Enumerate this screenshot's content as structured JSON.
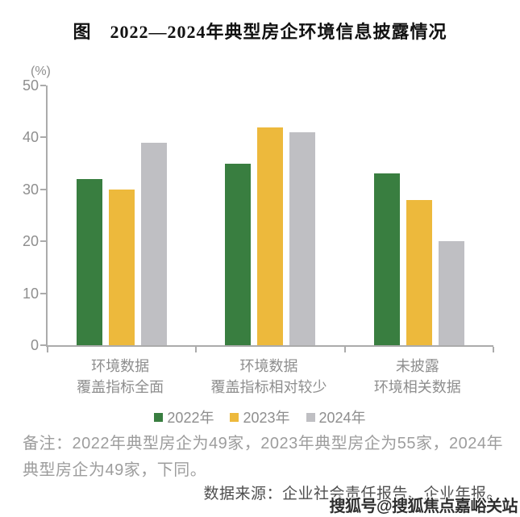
{
  "page": {
    "title": "图　2022—2024年典型房企环境信息披露情况",
    "note": "备注：2022年典型房企为49家，2023年典型房企为55家，2024年典型房企为49家，下同。",
    "source": "数据来源：企业社会责任报告、企业年报。",
    "watermark": "搜狐号@搜狐焦点嘉峪关站"
  },
  "chart_data": {
    "type": "bar",
    "title": "图　2022—2024年典型房企环境信息披露情况",
    "unit_label": "(%)",
    "categories": [
      "环境数据\n覆盖指标全面",
      "环境数据\n覆盖指标相对较少",
      "未披露\n环境相关数据"
    ],
    "series": [
      {
        "name": "2022年",
        "color": "#397E40",
        "values": [
          32,
          35,
          33
        ]
      },
      {
        "name": "2023年",
        "color": "#EDB93C",
        "values": [
          30,
          42,
          28
        ]
      },
      {
        "name": "2024年",
        "color": "#BFBFC3",
        "values": [
          39,
          41,
          20
        ]
      }
    ],
    "ylim": [
      0,
      50
    ],
    "ytick_interval": 10,
    "grid": false,
    "legend_position": "bottom",
    "axis_color": "#ababab",
    "label_color": "#8e8e8e"
  }
}
